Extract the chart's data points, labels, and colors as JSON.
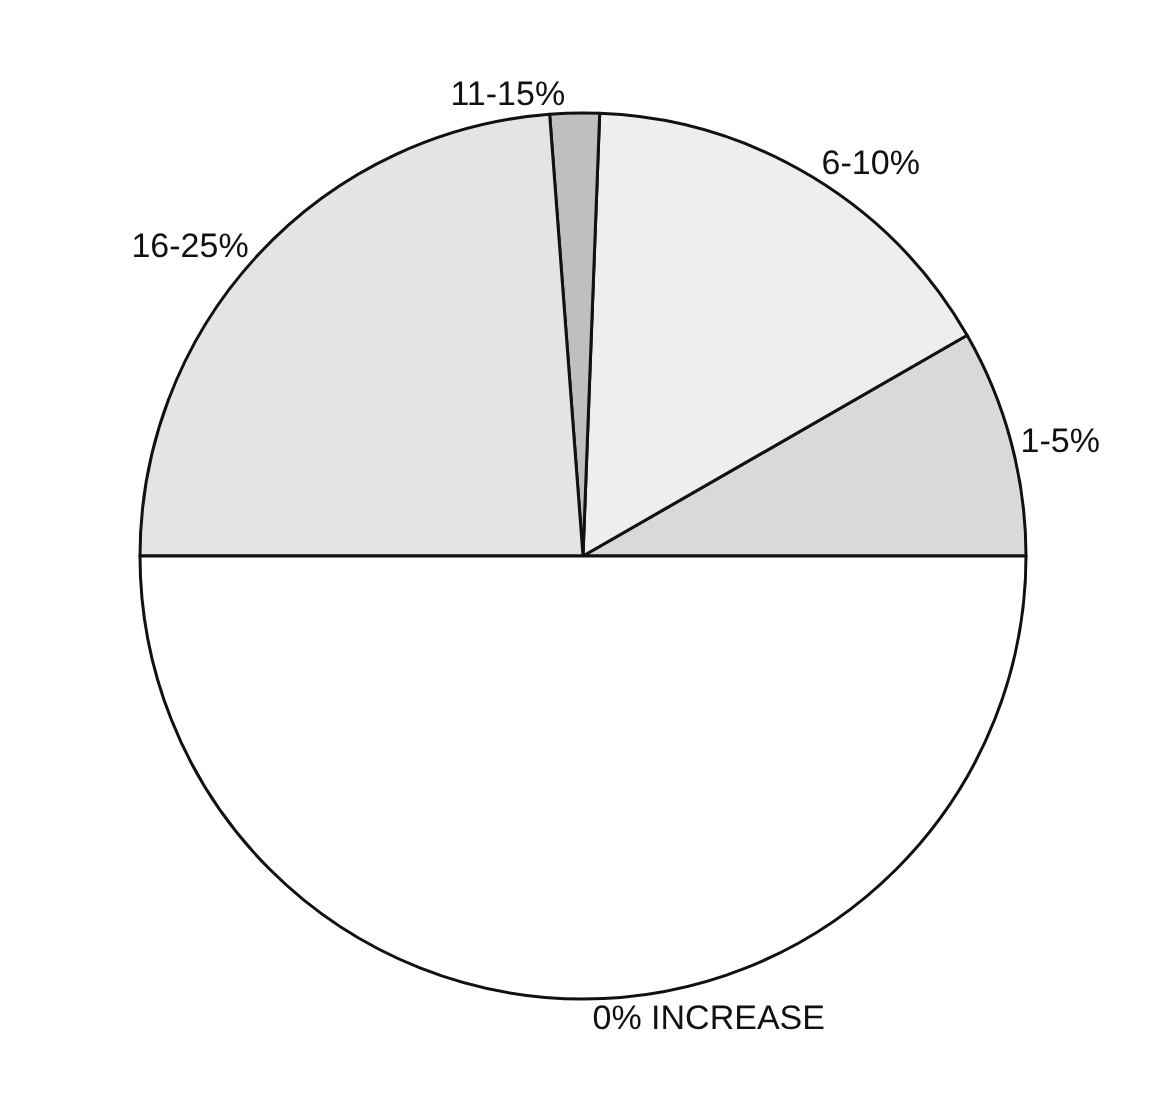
{
  "chart_data": {
    "type": "pie",
    "categories": [
      "1-5%",
      "6-10%",
      "11-15%",
      "16-25%",
      "0% INCREASE"
    ],
    "values": [
      8.3,
      16.1,
      1.8,
      23.8,
      50
    ],
    "colors": [
      "#d9d9d9",
      "#eeeeee",
      "#bfbfbf",
      "#e4e4e4",
      "#ffffff"
    ],
    "legend": false
  }
}
